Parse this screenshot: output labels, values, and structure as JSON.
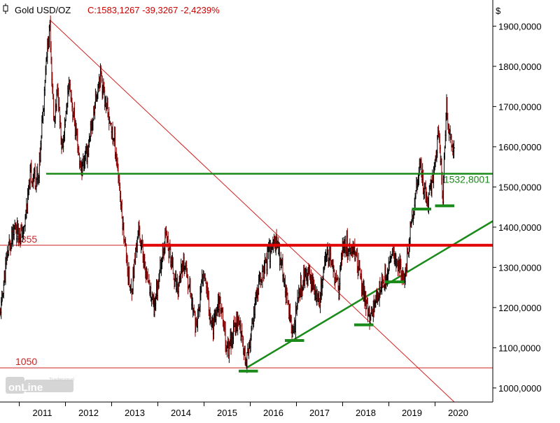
{
  "header": {
    "icon": "candlestick-icon",
    "instrument": "Gold USD/OZ",
    "quote": "C:1583,1267 -39,3267 -2,4239%"
  },
  "logo": {
    "vendor": "Tradesignal",
    "product": "onLine"
  },
  "colors": {
    "background": "#ffffff",
    "bar": "#000000",
    "bar_down": "#8b0000",
    "support": "#1a8a1a",
    "resistance": "#e00000",
    "trendline": "#d42020",
    "axis": "#000000",
    "quote_red": "#cc0000"
  },
  "chart_data": {
    "type": "ohlc",
    "title": "Gold USD/OZ",
    "yaxis_unit": "$",
    "ylim": [
      965,
      1965
    ],
    "y_ticks": [
      "1000,0000",
      "1100,0000",
      "1200,0000",
      "1300,0000",
      "1400,0000",
      "1500,0000",
      "1600,0000",
      "1700,0000",
      "1800,0000",
      "1900,0000"
    ],
    "x_ticks": [
      "2011",
      "2012",
      "2013",
      "2014",
      "2015",
      "2016",
      "2017",
      "2018",
      "2019",
      "2020"
    ],
    "x_range": [
      "2010-08",
      "2021-04"
    ],
    "grid": false,
    "price_series": {
      "name": "Gold USD/OZ",
      "points": [
        [
          "2010-08",
          1180
        ],
        [
          "2010-10",
          1340
        ],
        [
          "2010-12",
          1400
        ],
        [
          "2011-02",
          1380
        ],
        [
          "2011-04",
          1530
        ],
        [
          "2011-06",
          1520
        ],
        [
          "2011-08",
          1820
        ],
        [
          "2011-09",
          1900
        ],
        [
          "2011-10",
          1650
        ],
        [
          "2011-11",
          1750
        ],
        [
          "2011-12",
          1580
        ],
        [
          "2012-02",
          1760
        ],
        [
          "2012-05",
          1540
        ],
        [
          "2012-07",
          1600
        ],
        [
          "2012-10",
          1790
        ],
        [
          "2012-12",
          1680
        ],
        [
          "2013-02",
          1600
        ],
        [
          "2013-04",
          1400
        ],
        [
          "2013-06",
          1230
        ],
        [
          "2013-08",
          1400
        ],
        [
          "2013-10",
          1280
        ],
        [
          "2013-12",
          1200
        ],
        [
          "2014-03",
          1380
        ],
        [
          "2014-06",
          1250
        ],
        [
          "2014-08",
          1310
        ],
        [
          "2014-11",
          1150
        ],
        [
          "2015-01",
          1300
        ],
        [
          "2015-03",
          1150
        ],
        [
          "2015-05",
          1220
        ],
        [
          "2015-07",
          1090
        ],
        [
          "2015-10",
          1180
        ],
        [
          "2015-12",
          1050
        ],
        [
          "2016-03",
          1250
        ],
        [
          "2016-07",
          1370
        ],
        [
          "2016-09",
          1320
        ],
        [
          "2016-12",
          1130
        ],
        [
          "2017-02",
          1250
        ],
        [
          "2017-04",
          1290
        ],
        [
          "2017-07",
          1210
        ],
        [
          "2017-09",
          1350
        ],
        [
          "2017-12",
          1240
        ],
        [
          "2018-01",
          1360
        ],
        [
          "2018-04",
          1340
        ],
        [
          "2018-08",
          1170
        ],
        [
          "2018-10",
          1230
        ],
        [
          "2019-01",
          1290
        ],
        [
          "2019-02",
          1340
        ],
        [
          "2019-05",
          1270
        ],
        [
          "2019-07",
          1420
        ],
        [
          "2019-09",
          1550
        ],
        [
          "2019-11",
          1460
        ],
        [
          "2020-01",
          1560
        ],
        [
          "2020-02",
          1640
        ],
        [
          "2020-03",
          1470
        ],
        [
          "2020-04",
          1700
        ],
        [
          "2020-05",
          1620
        ],
        [
          "2020-06",
          1583
        ]
      ]
    },
    "horizontal_lines": [
      {
        "kind": "support",
        "value": 1532.8001,
        "from": "2011-08",
        "to": "2021-04",
        "label": "1532,8001",
        "color": "#1a8a1a"
      },
      {
        "kind": "resistance",
        "value": 1355,
        "from": "2013-09",
        "to": "2021-04",
        "color": "#e00000"
      },
      {
        "kind": "reference",
        "value": 1355,
        "from": "2010-08",
        "to": "2021-04",
        "label": "1355",
        "color": "#cc2222"
      },
      {
        "kind": "reference",
        "value": 1050,
        "from": "2010-08",
        "to": "2021-04",
        "label": "1050",
        "color": "#cc2222"
      }
    ],
    "trendlines": [
      {
        "kind": "falling-resistance",
        "from": [
          "2011-09",
          1915
        ],
        "to": [
          "2020-06",
          965
        ],
        "color": "#d42020"
      },
      {
        "kind": "rising-support",
        "from": [
          "2015-12",
          1050
        ],
        "to": [
          "2021-04",
          1415
        ],
        "color": "#1a8a1a"
      }
    ],
    "support_marks": [
      {
        "value": 1042,
        "from": "2015-10",
        "to": "2016-03"
      },
      {
        "value": 1118,
        "from": "2016-10",
        "to": "2017-03"
      },
      {
        "value": 1157,
        "from": "2018-04",
        "to": "2018-09"
      },
      {
        "value": 1264,
        "from": "2018-12",
        "to": "2019-05"
      },
      {
        "value": 1445,
        "from": "2019-07",
        "to": "2019-12"
      },
      {
        "value": 1453,
        "from": "2020-01",
        "to": "2020-06"
      }
    ]
  }
}
